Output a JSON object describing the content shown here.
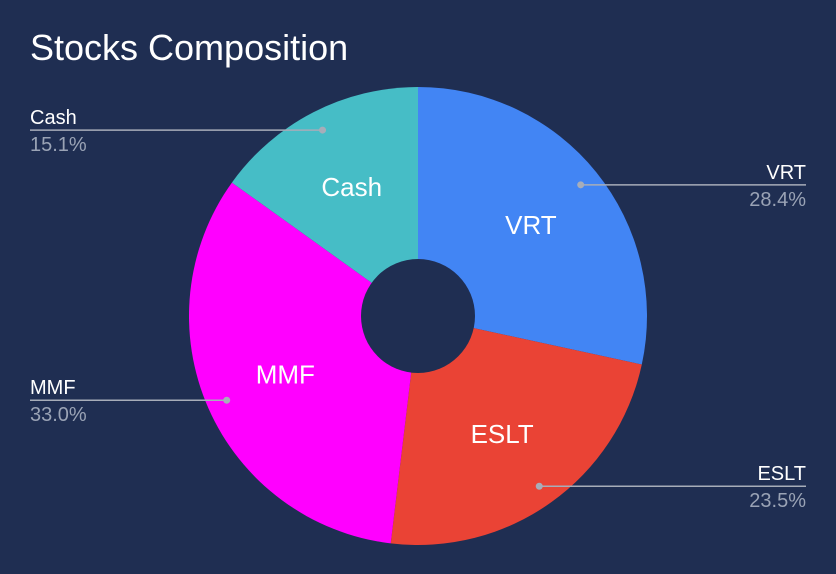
{
  "chart_data": {
    "type": "pie",
    "title": "Stocks Composition",
    "donut": true,
    "legend": "outside-callouts",
    "slices": [
      {
        "label": "VRT",
        "value": 28.4,
        "percent_text": "28.4%",
        "color": "#4285f4"
      },
      {
        "label": "ESLT",
        "value": 23.5,
        "percent_text": "23.5%",
        "color": "#ea4335"
      },
      {
        "label": "MMF",
        "value": 33.0,
        "percent_text": "33.0%",
        "color": "#ff00ff"
      },
      {
        "label": "Cash",
        "value": 15.1,
        "percent_text": "15.1%",
        "color": "#46bdc6"
      }
    ]
  },
  "colors": {
    "background": "#1f2e52",
    "text": "#ffffff",
    "muted_text": "#9aa3b5",
    "leader_line": "#a7adb9"
  }
}
